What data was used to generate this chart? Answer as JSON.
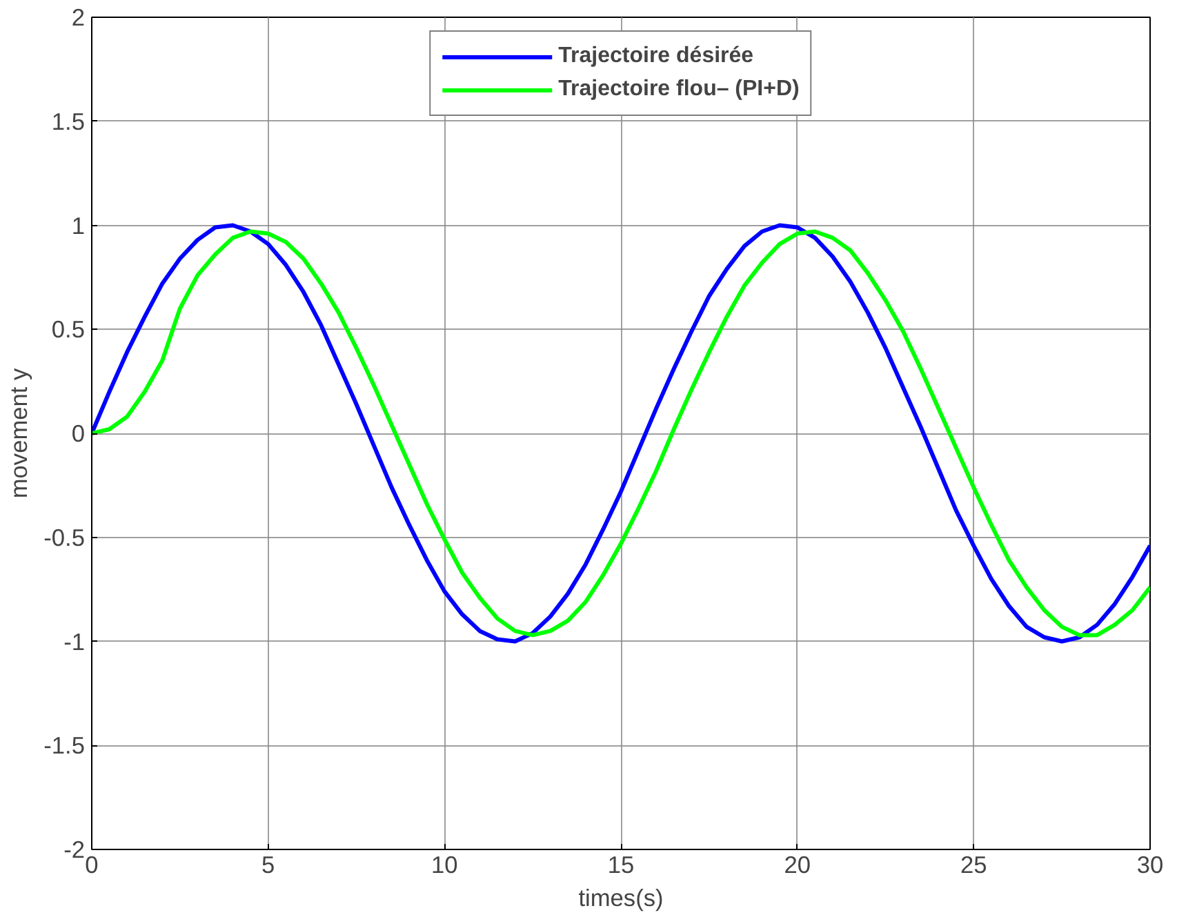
{
  "chart_data": {
    "type": "line",
    "xlabel": "times(s)",
    "ylabel": "movement y",
    "x": [
      0,
      0.5,
      1,
      1.5,
      2,
      2.5,
      3,
      3.5,
      4,
      4.5,
      5,
      5.5,
      6,
      6.5,
      7,
      7.5,
      8,
      8.5,
      9,
      9.5,
      10,
      10.5,
      11,
      11.5,
      12,
      12.5,
      13,
      13.5,
      14,
      14.5,
      15,
      15.5,
      16,
      16.5,
      17,
      17.5,
      18,
      18.5,
      19,
      19.5,
      20,
      20.5,
      21,
      21.5,
      22,
      22.5,
      23,
      23.5,
      24,
      24.5,
      25,
      25.5,
      26,
      26.5,
      27,
      27.5,
      28,
      28.5,
      29,
      29.5,
      30
    ],
    "series": [
      {
        "name": "Trajectoire désirée",
        "color": "#0000ff",
        "values": [
          0,
          0.2,
          0.39,
          0.56,
          0.72,
          0.84,
          0.93,
          0.99,
          1.0,
          0.97,
          0.91,
          0.81,
          0.68,
          0.52,
          0.33,
          0.14,
          -0.06,
          -0.26,
          -0.44,
          -0.61,
          -0.76,
          -0.87,
          -0.95,
          -0.99,
          -1.0,
          -0.96,
          -0.88,
          -0.77,
          -0.63,
          -0.46,
          -0.28,
          -0.08,
          0.12,
          0.31,
          0.49,
          0.66,
          0.79,
          0.9,
          0.97,
          1.0,
          0.99,
          0.94,
          0.85,
          0.73,
          0.58,
          0.41,
          0.22,
          0.03,
          -0.17,
          -0.37,
          -0.54,
          -0.7,
          -0.83,
          -0.93,
          -0.98,
          -1.0,
          -0.98,
          -0.92,
          -0.82,
          -0.69,
          -0.54
        ]
      },
      {
        "name": "Trajectoire flou– (PI+D)",
        "color": "#00ff00",
        "values": [
          0,
          0.02,
          0.08,
          0.2,
          0.35,
          0.6,
          0.76,
          0.86,
          0.94,
          0.97,
          0.96,
          0.92,
          0.84,
          0.72,
          0.58,
          0.41,
          0.23,
          0.04,
          -0.15,
          -0.34,
          -0.51,
          -0.67,
          -0.79,
          -0.89,
          -0.95,
          -0.97,
          -0.95,
          -0.9,
          -0.81,
          -0.68,
          -0.53,
          -0.36,
          -0.18,
          0.02,
          0.21,
          0.39,
          0.56,
          0.71,
          0.82,
          0.91,
          0.96,
          0.97,
          0.94,
          0.88,
          0.77,
          0.64,
          0.49,
          0.31,
          0.12,
          -0.07,
          -0.26,
          -0.44,
          -0.61,
          -0.74,
          -0.85,
          -0.93,
          -0.97,
          -0.97,
          -0.92,
          -0.85,
          -0.74
        ]
      }
    ],
    "xlim": [
      0,
      30
    ],
    "ylim": [
      -2,
      2
    ],
    "xticks": [
      0,
      5,
      10,
      15,
      20,
      25,
      30
    ],
    "yticks": [
      -2,
      -1.5,
      -1,
      -0.5,
      0,
      0.5,
      1,
      1.5,
      2
    ],
    "grid": true,
    "legend": "top",
    "line_style": "solid",
    "marker": "none"
  }
}
